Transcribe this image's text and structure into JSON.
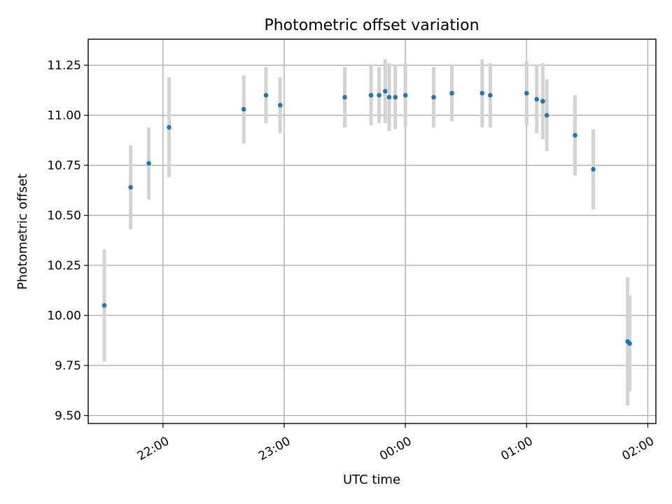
{
  "chart_data": {
    "type": "scatter",
    "title": "Photometric offset variation",
    "xlabel": "UTC time",
    "ylabel": "Photometric offset",
    "grid": true,
    "x_unit": "UTC time (HH:MM)",
    "xlim": [
      "21:23",
      "02:04"
    ],
    "ylim": [
      9.46,
      11.38
    ],
    "x_ticks": [
      "22:00",
      "23:00",
      "00:00",
      "01:00",
      "02:00"
    ],
    "y_ticks": [
      9.5,
      9.75,
      10.0,
      10.25,
      10.5,
      10.75,
      11.0,
      11.25
    ],
    "y_tick_labels": [
      "9.50",
      "9.75",
      "10.00",
      "10.25",
      "10.50",
      "10.75",
      "11.00",
      "11.25"
    ],
    "colors": {
      "marker": "#1f77b4",
      "errorbar": "#d3d3d3",
      "grid": "#b0b0b0"
    },
    "series": [
      {
        "points": [
          {
            "x": "21:31",
            "y": 10.05,
            "yerr": 0.28
          },
          {
            "x": "21:44",
            "y": 10.64,
            "yerr": 0.21
          },
          {
            "x": "21:53",
            "y": 10.76,
            "yerr": 0.18
          },
          {
            "x": "22:03",
            "y": 10.94,
            "yerr": 0.25
          },
          {
            "x": "22:40",
            "y": 11.03,
            "yerr": 0.17
          },
          {
            "x": "22:51",
            "y": 11.1,
            "yerr": 0.14
          },
          {
            "x": "22:58",
            "y": 11.05,
            "yerr": 0.14
          },
          {
            "x": "23:30",
            "y": 11.09,
            "yerr": 0.15
          },
          {
            "x": "23:43",
            "y": 11.1,
            "yerr": 0.15
          },
          {
            "x": "23:47",
            "y": 11.1,
            "yerr": 0.14
          },
          {
            "x": "23:50",
            "y": 11.12,
            "yerr": 0.16
          },
          {
            "x": "23:52",
            "y": 11.09,
            "yerr": 0.17
          },
          {
            "x": "23:55",
            "y": 11.09,
            "yerr": 0.16
          },
          {
            "x": "00:00",
            "y": 11.1,
            "yerr": 0.16
          },
          {
            "x": "00:14",
            "y": 11.09,
            "yerr": 0.15
          },
          {
            "x": "00:23",
            "y": 11.11,
            "yerr": 0.14
          },
          {
            "x": "00:38",
            "y": 11.11,
            "yerr": 0.17
          },
          {
            "x": "00:42",
            "y": 11.1,
            "yerr": 0.16
          },
          {
            "x": "01:00",
            "y": 11.11,
            "yerr": 0.16
          },
          {
            "x": "01:05",
            "y": 11.08,
            "yerr": 0.17
          },
          {
            "x": "01:08",
            "y": 11.07,
            "yerr": 0.19
          },
          {
            "x": "01:10",
            "y": 11.0,
            "yerr": 0.18
          },
          {
            "x": "01:24",
            "y": 10.9,
            "yerr": 0.2
          },
          {
            "x": "01:33",
            "y": 10.73,
            "yerr": 0.2
          },
          {
            "x": "01:50",
            "y": 9.87,
            "yerr": 0.32
          },
          {
            "x": "01:51",
            "y": 9.86,
            "yerr": 0.24
          }
        ]
      }
    ]
  }
}
